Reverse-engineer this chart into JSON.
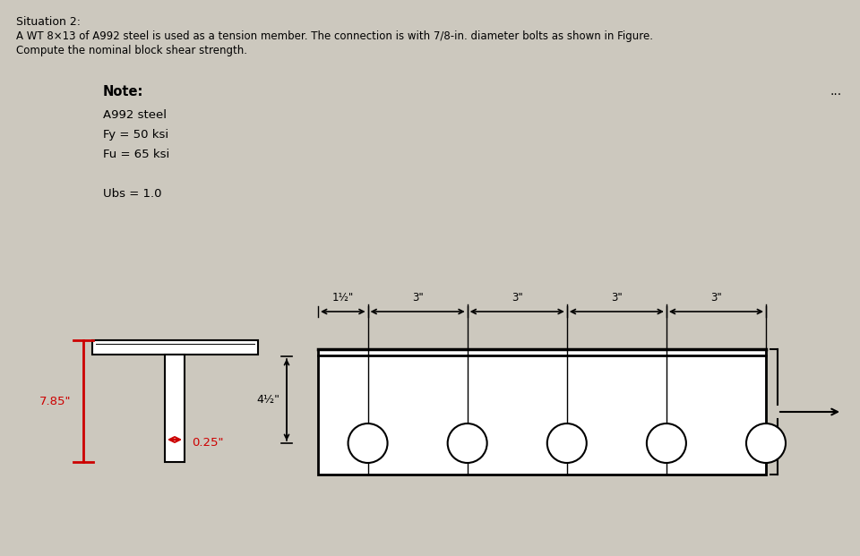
{
  "title_line1": "Situation 2:",
  "title_line2": "A WT 8×13 of A992 steel is used as a tension member. The connection is with 7/8-in. diameter bolts as shown in Figure.",
  "title_line3": "Compute the nominal block shear strength.",
  "note_label": "Note:",
  "note_lines": [
    "A992 steel",
    "Fy = 50 ksi",
    "Fu = 65 ksi",
    "",
    "Ubs = 1.0"
  ],
  "dots_label": "...",
  "bg_color": "#ccc8be",
  "text_color": "#000000",
  "red_color": "#cc0000",
  "plate_height_label": "4½\"",
  "plate_width_annotations": [
    "1½\"",
    "3\"",
    "3\"",
    "3\"",
    "3\""
  ],
  "dim_label_785": "7.85\"",
  "dim_label_025": "0.25\""
}
